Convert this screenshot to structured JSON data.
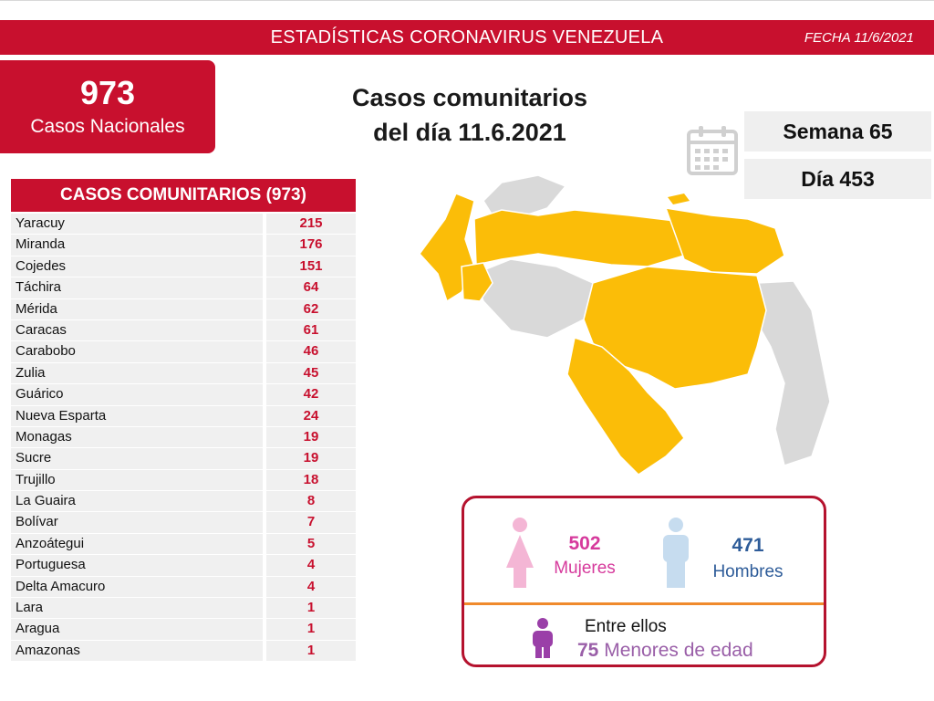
{
  "header": {
    "title": "ESTADÍSTICAS CORONAVIRUS VENEZUELA",
    "date": "FECHA 11/6/2021"
  },
  "total": {
    "value": "973",
    "label": "Casos Nacionales"
  },
  "main_title": {
    "line1": "Casos comunitarios",
    "line2": "del día 11.6.2021"
  },
  "semana": "Semana 65",
  "dia": "Día 453",
  "table": {
    "header": "CASOS COMUNITARIOS (973)"
  },
  "chart_data": {
    "type": "table",
    "title": "CASOS COMUNITARIOS (973)",
    "categories": [
      "Yaracuy",
      "Miranda",
      "Cojedes",
      "Táchira",
      "Mérida",
      "Caracas",
      "Carabobo",
      "Zulia",
      "Guárico",
      "Nueva Esparta",
      "Monagas",
      "Sucre",
      "Trujillo",
      "La Guaira",
      "Bolívar",
      "Anzoátegui",
      "Portuguesa",
      "Delta Amacuro",
      "Lara",
      "Aragua",
      "Amazonas"
    ],
    "values": [
      215,
      176,
      151,
      64,
      62,
      61,
      46,
      45,
      42,
      24,
      19,
      19,
      18,
      8,
      7,
      5,
      4,
      4,
      1,
      1,
      1
    ]
  },
  "gender": {
    "mujeres_value": "502",
    "mujeres_label": "Mujeres",
    "hombres_value": "471",
    "hombres_label": "Hombres",
    "entre_ellos": "Entre ellos",
    "menores_value": "75",
    "menores_label": "Menores de edad"
  },
  "colors": {
    "brand_red": "#c8102e",
    "map_affected": "#fbbd08",
    "map_unaffected": "#d9d9d9",
    "women": "#d63a9c",
    "men": "#2e5c99",
    "minors": "#9a5fa8",
    "divider": "#f08a2c"
  },
  "icons": [
    "calendar-icon",
    "woman-icon",
    "man-icon",
    "child-icon"
  ]
}
